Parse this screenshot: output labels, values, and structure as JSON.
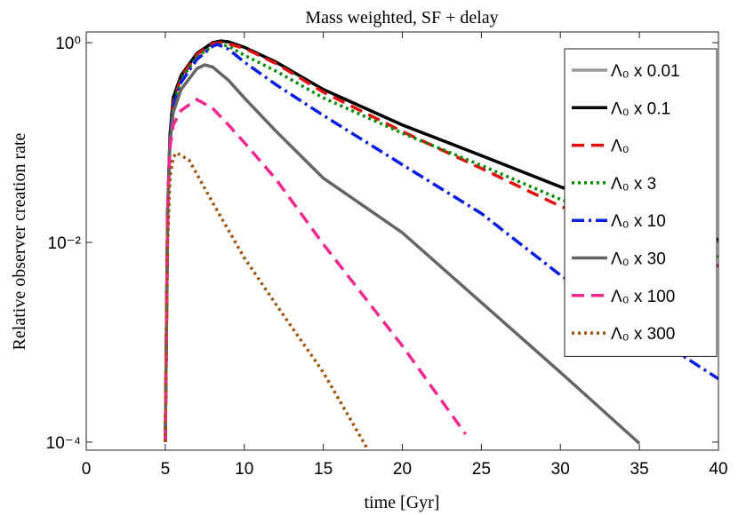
{
  "chart_data": {
    "type": "line",
    "title": "Mass weighted, SF + delay",
    "xlabel": "time [Gyr]",
    "ylabel": "Relative observer creation rate",
    "xlim": [
      0,
      40
    ],
    "xticks": [
      0,
      5,
      10,
      15,
      20,
      25,
      30,
      35,
      40
    ],
    "ylim": [
      8.3e-05,
      1.28
    ],
    "log_y": true,
    "yticks": [
      {
        "value": 0.0001,
        "label": "10⁻⁴"
      },
      {
        "value": 0.01,
        "label": "10⁻²"
      },
      {
        "value": 1,
        "label": "10⁰"
      }
    ],
    "legend": "upper right",
    "series": [
      {
        "name": "Λ₀ x 0.01",
        "color": "#9a9a9a",
        "style": "solid",
        "x": [
          5,
          5.15,
          5.3,
          5.5,
          6,
          7,
          8,
          8.5,
          9,
          10,
          12,
          15,
          20,
          25,
          30,
          35,
          40
        ],
        "values": [
          0.0001,
          0.02,
          0.12,
          0.28,
          0.47,
          0.78,
          1,
          1.04,
          1.02,
          0.9,
          0.64,
          0.34,
          0.15,
          0.074,
          0.036,
          0.0195,
          0.0106
        ]
      },
      {
        "name": "Λ₀ x 0.1",
        "color": "#000000",
        "style": "solid",
        "x": [
          5,
          5.15,
          5.3,
          5.5,
          6,
          7,
          8,
          8.5,
          9,
          10,
          12,
          15,
          20,
          25,
          30,
          35,
          40
        ],
        "values": [
          0.0001,
          0.02,
          0.12,
          0.28,
          0.47,
          0.78,
          1,
          1.04,
          1.02,
          0.9,
          0.64,
          0.34,
          0.15,
          0.074,
          0.036,
          0.0195,
          0.0106
        ]
      },
      {
        "name": "Λ₀",
        "color": "#e01010",
        "style": "dashed",
        "x": [
          5,
          5.15,
          5.3,
          5.5,
          6,
          7,
          8,
          8.5,
          9,
          10,
          12,
          15,
          20,
          25,
          30,
          35,
          40
        ],
        "values": [
          0.0001,
          0.02,
          0.11,
          0.25,
          0.45,
          0.76,
          0.98,
          1.0,
          0.97,
          0.88,
          0.62,
          0.32,
          0.129,
          0.055,
          0.023,
          0.0117,
          0.0058
        ]
      },
      {
        "name": "Λ₀ x 3",
        "color": "#008a00",
        "style": "dotted",
        "x": [
          5,
          5.15,
          5.3,
          5.5,
          6,
          7,
          8,
          8.5,
          9,
          10,
          12,
          15,
          20,
          25,
          30,
          35,
          40
        ],
        "values": [
          0.0001,
          0.02,
          0.11,
          0.24,
          0.43,
          0.72,
          0.93,
          0.96,
          0.92,
          0.75,
          0.52,
          0.28,
          0.124,
          0.059,
          0.027,
          0.0145,
          0.0071
        ]
      },
      {
        "name": "Λ₀ x 10",
        "color": "#0a1ee0",
        "style": "dashdot",
        "x": [
          5,
          5.15,
          5.3,
          5.5,
          6,
          7,
          8,
          8.3,
          9,
          10,
          12,
          15,
          20,
          25,
          30,
          35,
          40
        ],
        "values": [
          0.0001,
          0.02,
          0.11,
          0.23,
          0.4,
          0.68,
          0.92,
          0.96,
          0.86,
          0.64,
          0.38,
          0.187,
          0.06,
          0.0195,
          0.0047,
          0.0014,
          0.00043
        ]
      },
      {
        "name": "Λ₀ x 30",
        "color": "#656565",
        "style": "solid",
        "x": [
          5,
          5.15,
          5.3,
          5.5,
          6,
          7,
          7.5,
          8,
          9,
          10,
          12,
          15,
          20,
          25,
          30,
          35
        ],
        "values": [
          0.0001,
          0.02,
          0.1,
          0.2,
          0.34,
          0.55,
          0.6,
          0.57,
          0.42,
          0.28,
          0.13,
          0.044,
          0.0125,
          0.0025,
          0.0005,
          9.7e-05
        ]
      },
      {
        "name": "Λ₀ x 100",
        "color": "#f2288f",
        "style": "dashed",
        "x": [
          5,
          5.15,
          5.3,
          5.5,
          6,
          7,
          8,
          9,
          10,
          12,
          15,
          20,
          24
        ],
        "values": [
          0.0001,
          0.02,
          0.09,
          0.15,
          0.21,
          0.27,
          0.22,
          0.15,
          0.1,
          0.043,
          0.0096,
          0.00092,
          0.00012
        ]
      },
      {
        "name": "Λ₀ x 300",
        "color": "#a0520a",
        "style": "dotted",
        "x": [
          5,
          5.15,
          5.3,
          5.5,
          5.7,
          6.5,
          8,
          10,
          12,
          15,
          17.8
        ],
        "values": [
          0.0001,
          0.01,
          0.045,
          0.07,
          0.079,
          0.067,
          0.025,
          0.007,
          0.0024,
          0.0005,
          8.5e-05
        ]
      }
    ]
  }
}
